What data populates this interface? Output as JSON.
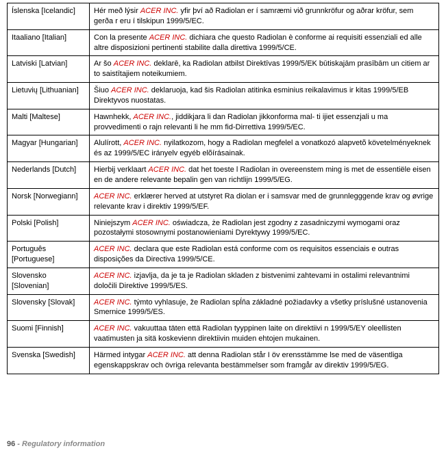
{
  "company": "ACER INC.",
  "rows": [
    {
      "language": "Íslenska [Icelandic]",
      "pre": "Hér með lýsir ",
      "post": " yfir því að Radiolan er í samræmi við grunnkröfur og aðrar kröfur, sem gerða r eru í tilskipun 1999/5/EC."
    },
    {
      "language": "Itaaliano [Italian]",
      "pre": "Con la presente ",
      "post": " dichiara che questo Radiolan è conforme ai requisiti essenziali ed alle altre disposizioni pertinenti stabilite dalla direttiva 1999/5/CE."
    },
    {
      "language": "Latviski [Latvian]",
      "pre": "Ar šo ",
      "post": " deklarē, ka Radiolan atbilst Direktīvas 1999/5/EK būtiskajām prasībām un citiem ar to saistītajiem noteikumiem."
    },
    {
      "language": "Lietuvių [Lithuanian]",
      "pre": "Šiuo ",
      "post": " deklaruoja, kad šis Radiolan atitinka esminius reikalavimus ir kitas 1999/5/EB Direktyvos nuostatas."
    },
    {
      "language": "Malti [Maltese]",
      "pre": "Hawnhekk, ",
      "post": ", jiddikjara li dan Radiolan jikkonforma mal- ti ijiet essenzjali u ma provvedimenti o rajn relevanti li he mm fid-Dirrettiva 1999/5/EC."
    },
    {
      "language": "Magyar [Hungarian]",
      "pre": "Alulírott, ",
      "post": " nyilatkozom, hogy a Radiolan megfelel a vonatkozó alapvetõ követelményeknek és az 1999/5/EC irányelv egyéb elõírásainak."
    },
    {
      "language": "Nederlands [Dutch]",
      "pre": "Hierbij verklaart ",
      "post": " dat het toeste l Radiolan in overeenstem ming is met de essentiële eisen en de andere relevante bepalin gen van richtlijn 1999/5/EG."
    },
    {
      "language": "Norsk [Norwegiann]",
      "pre": "",
      "post": " erklærer herved at utstyret Ra diolan er i samsvar med de grunnlegggende krav og øvrige relevante krav i direktiv 1999/5/EF."
    },
    {
      "language": "Polski [Polish]",
      "pre": "Niniejszym ",
      "post": " oświadcza, że Radiolan jest zgodny z zasadniczymi wymogami oraz pozostałymi stosownymi postanowieniami Dyrektywy 1999/5/EC."
    },
    {
      "language": "Português [Portuguese]",
      "pre": "",
      "post": " declara que este Radiolan está conforme com os requisitos essenciais e outras disposições da Directiva 1999/5/CE."
    },
    {
      "language": "Slovensko [Slovenian]",
      "pre": "",
      "post": " izjavlja, da je ta je Radiolan skladen z bistvenimi zahtevami in ostalimi relevantnimi določili Direktive 1999/5/ES."
    },
    {
      "language": "Slovensky [Slovak]",
      "pre": "",
      "post": " týmto vyhlasuje, že Radiolan spĺňa základné požiadavky a všetky príslušné ustanovenia Smernice 1999/5/ES."
    },
    {
      "language": "Suomi [Finnish]",
      "pre": "",
      "post": " vakuuttaa täten että Radiolan tyyppinen laite on direktiivi n 1999/5/EY oleellisten vaatimusten ja sitä koskevienn direktiivin muiden ehtojen mukainen."
    },
    {
      "language": "Svenska [Swedish]",
      "pre": "Härmed intygar ",
      "post": " att denna Radiolan står I öv erensstämme lse med de väsentliga egenskappskrav och övriga relevanta bestämmelser som framgår av direktiv 1999/5/EG."
    }
  ],
  "footer": {
    "page": "96",
    "separator": " - ",
    "section": "Regulatory information"
  }
}
